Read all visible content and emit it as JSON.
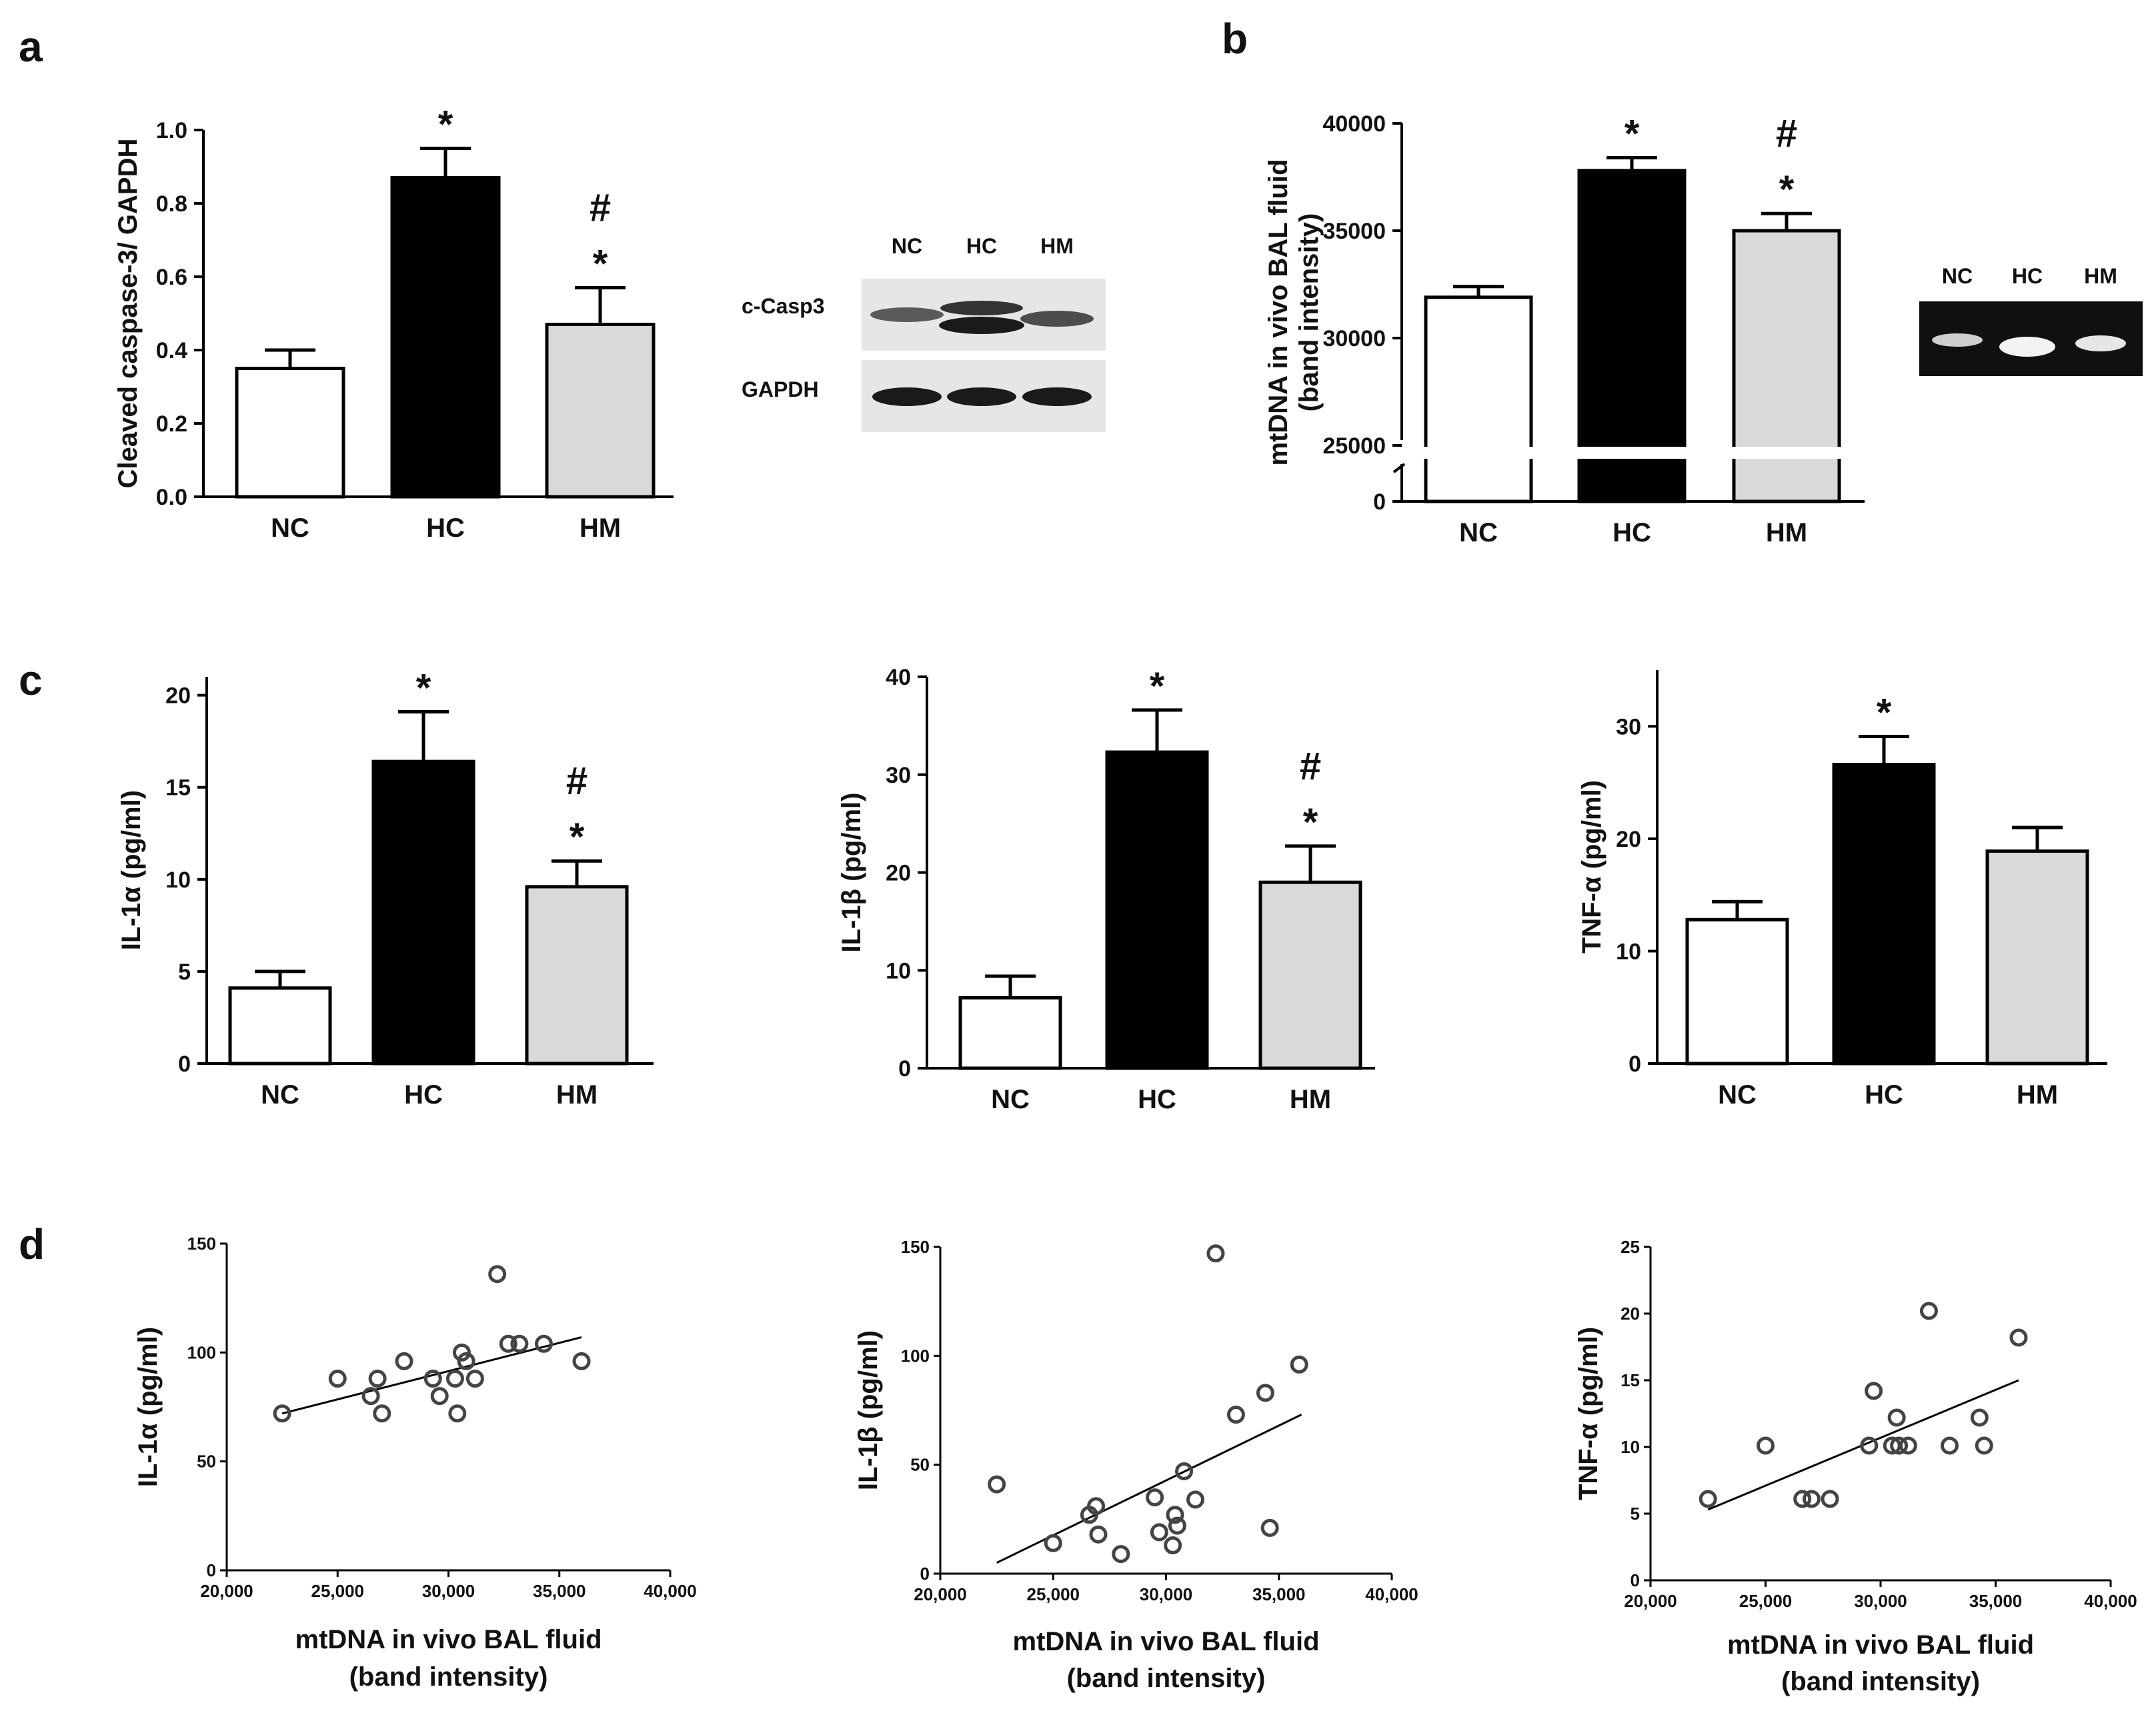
{
  "panels": {
    "a": "a",
    "b": "b",
    "c": "c",
    "d": "d"
  },
  "blot_a": {
    "lanes": [
      "NC",
      "HC",
      "HM"
    ],
    "bands": [
      "c-Casp3",
      "GAPDH"
    ]
  },
  "gel_b": {
    "lanes": [
      "NC",
      "HC",
      "HM"
    ]
  },
  "chart_data": [
    {
      "id": "a",
      "type": "bar",
      "categories": [
        "NC",
        "HC",
        "HM"
      ],
      "values": [
        0.35,
        0.87,
        0.47
      ],
      "errors": [
        0.05,
        0.08,
        0.1
      ],
      "colors": [
        "#ffffff",
        "#000000",
        "#d9d9d9"
      ],
      "annotations": [
        [],
        [
          "*"
        ],
        [
          "#",
          "*"
        ]
      ],
      "ylabel": "Cleaved caspase-3/ GAPDH",
      "ylim": [
        0,
        1.0
      ],
      "yticks": [
        "0.0",
        "0.2",
        "0.4",
        "0.6",
        "0.8",
        "1.0"
      ]
    },
    {
      "id": "b",
      "type": "bar",
      "categories": [
        "NC",
        "HC",
        "HM"
      ],
      "values": [
        31900,
        37800,
        35000
      ],
      "errors": [
        500,
        600,
        800
      ],
      "colors": [
        "#ffffff",
        "#000000",
        "#d9d9d9"
      ],
      "annotations": [
        [],
        [
          "*"
        ],
        [
          "#",
          "*"
        ]
      ],
      "ylabel": [
        "mtDNA in vivo BAL fluid",
        "(band intensity)"
      ],
      "axis_break": true,
      "ylim": [
        25000,
        40000
      ],
      "yticks": [
        "0",
        "25000",
        "30000",
        "35000",
        "40000"
      ]
    },
    {
      "id": "c1",
      "type": "bar",
      "categories": [
        "NC",
        "HC",
        "HM"
      ],
      "values": [
        4.1,
        16.4,
        9.6
      ],
      "errors": [
        0.9,
        2.7,
        1.4
      ],
      "colors": [
        "#ffffff",
        "#000000",
        "#d9d9d9"
      ],
      "annotations": [
        [],
        [
          "*"
        ],
        [
          "#",
          "*"
        ]
      ],
      "ylabel": "IL-1α  (pg/ml)",
      "ylim": [
        0,
        21
      ],
      "yticks": [
        "0",
        "5",
        "10",
        "15",
        "20"
      ]
    },
    {
      "id": "c2",
      "type": "bar",
      "categories": [
        "NC",
        "HC",
        "HM"
      ],
      "values": [
        7.2,
        32.3,
        19.0
      ],
      "errors": [
        2.2,
        4.3,
        3.7
      ],
      "colors": [
        "#ffffff",
        "#000000",
        "#d9d9d9"
      ],
      "annotations": [
        [],
        [
          "*"
        ],
        [
          "#",
          "*"
        ]
      ],
      "ylabel": "IL-1β  (pg/ml)",
      "ylim": [
        0,
        40
      ],
      "yticks": [
        "0",
        "10",
        "20",
        "30",
        "40"
      ]
    },
    {
      "id": "c3",
      "type": "bar",
      "categories": [
        "NC",
        "HC",
        "HM"
      ],
      "values": [
        12.8,
        26.6,
        18.9
      ],
      "errors": [
        1.6,
        2.5,
        2.1
      ],
      "colors": [
        "#ffffff",
        "#000000",
        "#d9d9d9"
      ],
      "annotations": [
        [],
        [
          "*"
        ],
        []
      ],
      "ylabel": "TNF-α  (pg/ml)",
      "ylim": [
        0,
        35
      ],
      "yticks": [
        "0",
        "10",
        "20",
        "30"
      ]
    },
    {
      "id": "d1",
      "type": "scatter",
      "xlabel": [
        "mtDNA in vivo BAL fluid",
        "(band intensity)"
      ],
      "ylabel": "IL-1α  (pg/ml)",
      "xlim": [
        20000,
        40000
      ],
      "ylim": [
        0,
        150
      ],
      "xticks": [
        "20,000",
        "25,000",
        "30,000",
        "35,000",
        "40,000"
      ],
      "yticks": [
        "0",
        "50",
        "100",
        "150"
      ],
      "points": [
        [
          22500,
          72
        ],
        [
          25000,
          88
        ],
        [
          26500,
          80
        ],
        [
          26800,
          88
        ],
        [
          27000,
          72
        ],
        [
          28000,
          96
        ],
        [
          29300,
          88
        ],
        [
          29600,
          80
        ],
        [
          30300,
          88
        ],
        [
          30400,
          72
        ],
        [
          30600,
          100
        ],
        [
          30800,
          96
        ],
        [
          31200,
          88
        ],
        [
          32200,
          136
        ],
        [
          32700,
          104
        ],
        [
          33200,
          104
        ],
        [
          34300,
          104
        ],
        [
          36000,
          96
        ]
      ],
      "fit": [
        [
          22500,
          72
        ],
        [
          36000,
          107
        ]
      ]
    },
    {
      "id": "d2",
      "type": "scatter",
      "xlabel": [
        "mtDNA in vivo BAL fluid",
        "(band intensity)"
      ],
      "ylabel": "IL-1β  (pg/ml)",
      "xlim": [
        20000,
        40000
      ],
      "ylim": [
        0,
        150
      ],
      "xticks": [
        "20,000",
        "25,000",
        "30,000",
        "35,000",
        "40,000"
      ],
      "yticks": [
        "0",
        "50",
        "100",
        "150"
      ],
      "points": [
        [
          22500,
          41
        ],
        [
          25000,
          14
        ],
        [
          26600,
          27
        ],
        [
          26900,
          31
        ],
        [
          27000,
          18
        ],
        [
          28000,
          9
        ],
        [
          29500,
          35
        ],
        [
          29700,
          19
        ],
        [
          30300,
          13
        ],
        [
          30400,
          27
        ],
        [
          30500,
          22
        ],
        [
          30800,
          47
        ],
        [
          31300,
          34
        ],
        [
          32200,
          147
        ],
        [
          33100,
          73
        ],
        [
          34400,
          83
        ],
        [
          34600,
          21
        ],
        [
          35900,
          96
        ]
      ],
      "fit": [
        [
          22500,
          5
        ],
        [
          36000,
          73
        ]
      ]
    },
    {
      "id": "d3",
      "type": "scatter",
      "xlabel": [
        "mtDNA in vivo BAL fluid",
        "(band intensity)"
      ],
      "ylabel": "TNF-α  (pg/ml)",
      "xlim": [
        20000,
        40000
      ],
      "ylim": [
        0,
        25
      ],
      "xticks": [
        "20,000",
        "25,000",
        "30,000",
        "35,000",
        "40,000"
      ],
      "yticks": [
        "0",
        "5",
        "10",
        "15",
        "20",
        "25"
      ],
      "points": [
        [
          22500,
          6.1
        ],
        [
          25000,
          10.1
        ],
        [
          26600,
          6.1
        ],
        [
          27000,
          6.1
        ],
        [
          27800,
          6.1
        ],
        [
          29500,
          10.1
        ],
        [
          29700,
          14.2
        ],
        [
          30500,
          10.1
        ],
        [
          30700,
          12.2
        ],
        [
          30800,
          10.1
        ],
        [
          31200,
          10.1
        ],
        [
          33000,
          10.1
        ],
        [
          34300,
          12.2
        ],
        [
          34500,
          10.1
        ],
        [
          36000,
          18.2
        ],
        [
          32100,
          20.2
        ]
      ],
      "fit": [
        [
          22500,
          5.3
        ],
        [
          36000,
          15.0
        ]
      ]
    }
  ]
}
